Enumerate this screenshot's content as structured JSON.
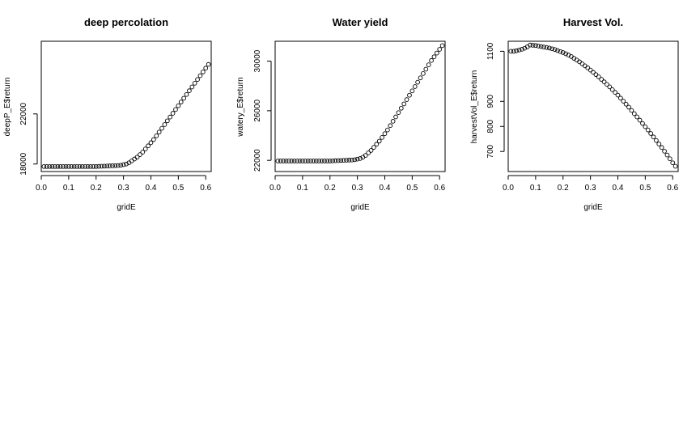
{
  "chart_data": [
    {
      "type": "scatter",
      "title": "deep percolation",
      "xlabel": "gridE",
      "ylabel": "deepP_E$return",
      "xlim": [
        0,
        0.62
      ],
      "ylim": [
        17400,
        27800
      ],
      "xticks": [
        0.0,
        0.1,
        0.2,
        0.3,
        0.4,
        0.5,
        0.6
      ],
      "xtick_labels": [
        "0.0",
        "0.1",
        "0.2",
        "0.3",
        "0.4",
        "0.5",
        "0.6"
      ],
      "yticks": [
        18000,
        22000
      ],
      "ytick_labels": [
        "18000",
        "22000"
      ],
      "x": [
        0.01,
        0.02,
        0.03,
        0.04,
        0.05,
        0.06,
        0.07,
        0.08,
        0.09,
        0.1,
        0.11,
        0.12,
        0.13,
        0.14,
        0.15,
        0.16,
        0.17,
        0.18,
        0.19,
        0.2,
        0.21,
        0.22,
        0.23,
        0.24,
        0.25,
        0.26,
        0.27,
        0.28,
        0.29,
        0.3,
        0.31,
        0.32,
        0.33,
        0.34,
        0.35,
        0.36,
        0.37,
        0.38,
        0.39,
        0.4,
        0.41,
        0.42,
        0.43,
        0.44,
        0.45,
        0.46,
        0.47,
        0.48,
        0.49,
        0.5,
        0.51,
        0.52,
        0.53,
        0.54,
        0.55,
        0.56,
        0.57,
        0.58,
        0.59,
        0.6,
        0.61
      ],
      "y": [
        17800,
        17800,
        17800,
        17800,
        17800,
        17800,
        17800,
        17800,
        17800,
        17800,
        17800,
        17800,
        17800,
        17800,
        17800,
        17800,
        17800,
        17800,
        17800,
        17800,
        17810,
        17820,
        17830,
        17840,
        17850,
        17860,
        17870,
        17880,
        17900,
        17950,
        18000,
        18100,
        18250,
        18400,
        18550,
        18750,
        18950,
        19200,
        19450,
        19700,
        19950,
        20250,
        20550,
        20850,
        21150,
        21450,
        21750,
        22050,
        22350,
        22650,
        22950,
        23250,
        23550,
        23850,
        24150,
        24450,
        24750,
        25050,
        25350,
        25650,
        25950
      ]
    },
    {
      "type": "scatter",
      "title": "Water yield",
      "xlabel": "gridE",
      "ylabel": "watery_E$return",
      "xlim": [
        0,
        0.62
      ],
      "ylim": [
        21100,
        31600
      ],
      "xticks": [
        0.0,
        0.1,
        0.2,
        0.3,
        0.4,
        0.5,
        0.6
      ],
      "xtick_labels": [
        "0.0",
        "0.1",
        "0.2",
        "0.3",
        "0.4",
        "0.5",
        "0.6"
      ],
      "yticks": [
        22000,
        26000,
        30000
      ],
      "ytick_labels": [
        "22000",
        "26000",
        "30000"
      ],
      "x": [
        0.01,
        0.02,
        0.03,
        0.04,
        0.05,
        0.06,
        0.07,
        0.08,
        0.09,
        0.1,
        0.11,
        0.12,
        0.13,
        0.14,
        0.15,
        0.16,
        0.17,
        0.18,
        0.19,
        0.2,
        0.21,
        0.22,
        0.23,
        0.24,
        0.25,
        0.26,
        0.27,
        0.28,
        0.29,
        0.3,
        0.31,
        0.32,
        0.33,
        0.34,
        0.35,
        0.36,
        0.37,
        0.38,
        0.39,
        0.4,
        0.41,
        0.42,
        0.43,
        0.44,
        0.45,
        0.46,
        0.47,
        0.48,
        0.49,
        0.5,
        0.51,
        0.52,
        0.53,
        0.54,
        0.55,
        0.56,
        0.57,
        0.58,
        0.59,
        0.6,
        0.61
      ],
      "y": [
        21950,
        21950,
        21950,
        21950,
        21950,
        21950,
        21950,
        21950,
        21950,
        21950,
        21950,
        21950,
        21950,
        21950,
        21950,
        21950,
        21950,
        21950,
        21950,
        21950,
        21960,
        21970,
        21980,
        21990,
        22000,
        22010,
        22020,
        22030,
        22050,
        22100,
        22150,
        22250,
        22400,
        22600,
        22800,
        23050,
        23300,
        23550,
        23850,
        24150,
        24450,
        24800,
        25150,
        25500,
        25850,
        26200,
        26550,
        26900,
        27250,
        27600,
        27950,
        28300,
        28650,
        29000,
        29350,
        29700,
        30050,
        30350,
        30650,
        30950,
        31250
      ]
    },
    {
      "type": "scatter",
      "title": "Harvest Vol.",
      "xlabel": "gridE",
      "ylabel": "harvestVol_E$return",
      "xlim": [
        0,
        0.62
      ],
      "ylim": [
        620,
        1140
      ],
      "xticks": [
        0.0,
        0.1,
        0.2,
        0.3,
        0.4,
        0.5,
        0.6
      ],
      "xtick_labels": [
        "0.0",
        "0.1",
        "0.2",
        "0.3",
        "0.4",
        "0.5",
        "0.6"
      ],
      "yticks": [
        700,
        800,
        900,
        1100
      ],
      "ytick_labels": [
        "700",
        "800",
        "900",
        "1100"
      ],
      "x": [
        0.01,
        0.02,
        0.03,
        0.04,
        0.05,
        0.06,
        0.07,
        0.08,
        0.09,
        0.1,
        0.11,
        0.12,
        0.13,
        0.14,
        0.15,
        0.16,
        0.17,
        0.18,
        0.19,
        0.2,
        0.21,
        0.22,
        0.23,
        0.24,
        0.25,
        0.26,
        0.27,
        0.28,
        0.29,
        0.3,
        0.31,
        0.32,
        0.33,
        0.34,
        0.35,
        0.36,
        0.37,
        0.38,
        0.39,
        0.4,
        0.41,
        0.42,
        0.43,
        0.44,
        0.45,
        0.46,
        0.47,
        0.48,
        0.49,
        0.5,
        0.51,
        0.52,
        0.53,
        0.54,
        0.55,
        0.56,
        0.57,
        0.58,
        0.59,
        0.6,
        0.61
      ],
      "y": [
        1100,
        1100,
        1102,
        1105,
        1108,
        1112,
        1118,
        1125,
        1124,
        1123,
        1121,
        1119,
        1117,
        1115,
        1113,
        1110,
        1107,
        1103,
        1099,
        1095,
        1090,
        1085,
        1079,
        1072,
        1065,
        1058,
        1050,
        1042,
        1034,
        1025,
        1016,
        1007,
        998,
        988,
        978,
        968,
        958,
        947,
        936,
        925,
        913,
        901,
        889,
        877,
        864,
        851,
        838,
        825,
        812,
        799,
        786,
        772,
        758,
        744,
        730,
        716,
        701,
        686,
        671,
        655,
        641
      ]
    }
  ]
}
